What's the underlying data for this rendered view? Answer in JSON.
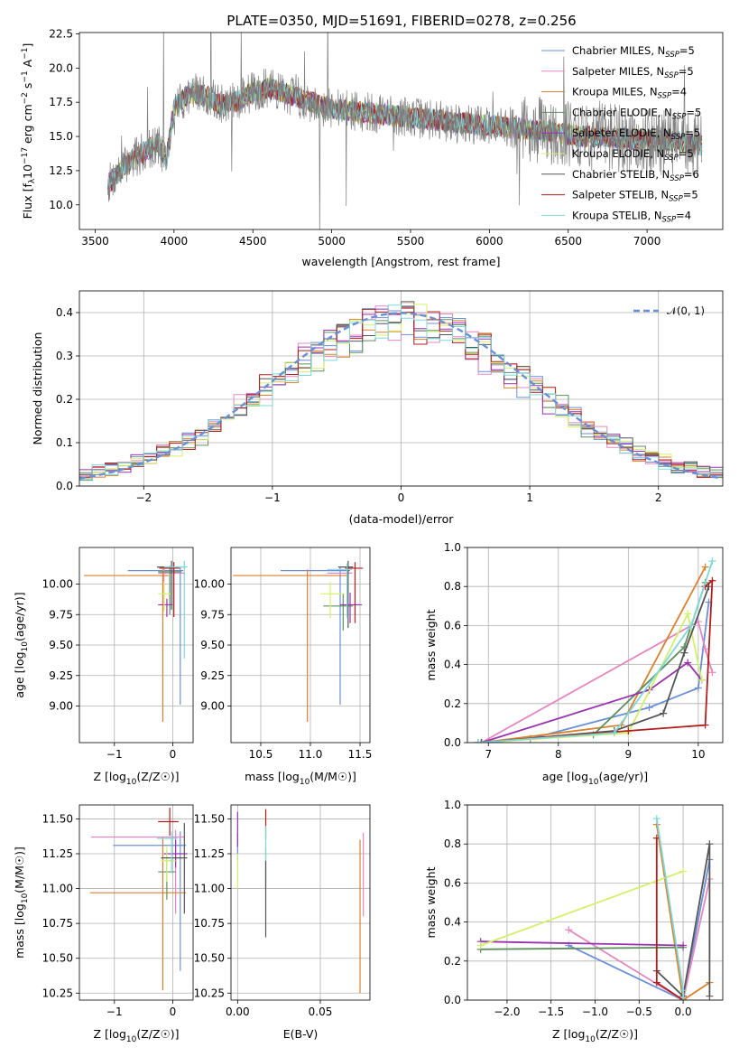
{
  "figure_title": "PLATE=0350, MJD=51691, FIBERID=0278, z=0.256",
  "model_colors": [
    "#6b8fd6",
    "#e388c2",
    "#d8822f",
    "#5f8f5f",
    "#9a32b0",
    "#d4ef6c",
    "#555555",
    "#b01e1e",
    "#7fd8d8"
  ],
  "chart_data": [
    {
      "id": "spectrum",
      "type": "line",
      "title": "PLATE=0350, MJD=51691, FIBERID=0278, z=0.256",
      "xlabel": "wavelength [Angstrom, rest frame]",
      "ylabel": "Flux [f_λ 10^-17 erg cm^-2 s^-1 A^-1]",
      "xlim": [
        3400,
        7480
      ],
      "ylim": [
        8.2,
        22.6
      ],
      "xticks": [
        3500,
        4000,
        4500,
        5000,
        5500,
        6000,
        6500,
        7000
      ],
      "yticks": [
        10.0,
        12.5,
        15.0,
        17.5,
        20.0,
        22.5
      ],
      "grid": false,
      "legend_position": "top-right",
      "data_color": "#808080",
      "continuum": {
        "x": [
          3580,
          3700,
          3800,
          3900,
          3950,
          4000,
          4100,
          4200,
          4300,
          4400,
          4500,
          4600,
          4700,
          4800,
          4900,
          5000,
          5200,
          5400,
          5600,
          5800,
          6000,
          6200,
          6400,
          6600,
          6800,
          7000,
          7200,
          7350
        ],
        "y": [
          11.5,
          13.0,
          13.8,
          14.5,
          13.2,
          17.0,
          18.2,
          18.0,
          17.3,
          17.6,
          18.3,
          18.5,
          18.2,
          17.8,
          17.4,
          17.0,
          16.8,
          16.5,
          16.3,
          16.0,
          15.8,
          15.6,
          15.3,
          15.0,
          14.9,
          14.7,
          14.6,
          14.3
        ]
      },
      "series": [
        {
          "name": "Chabrier MILES, N_SSP=5",
          "label_main": "Chabrier MILES, N",
          "label_sub": "SSP",
          "label_tail": "=5"
        },
        {
          "name": "Salpeter MILES, N_SSP=5",
          "label_main": "Salpeter MILES, N",
          "label_sub": "SSP",
          "label_tail": "=5"
        },
        {
          "name": "Kroupa MILES, N_SSP=4",
          "label_main": "Kroupa MILES, N",
          "label_sub": "SSP",
          "label_tail": "=4"
        },
        {
          "name": "Chabrier ELODIE, N_SSP=5",
          "label_main": "Chabrier ELODIE, N",
          "label_sub": "SSP",
          "label_tail": "=5"
        },
        {
          "name": "Salpeter ELODIE, N_SSP=5",
          "label_main": "Salpeter ELODIE, N",
          "label_sub": "SSP",
          "label_tail": "=5"
        },
        {
          "name": "Kroupa ELODIE, N_SSP=5",
          "label_main": "Kroupa ELODIE, N",
          "label_sub": "SSP",
          "label_tail": "=5"
        },
        {
          "name": "Chabrier STELIB, N_SSP=6",
          "label_main": "Chabrier STELIB, N",
          "label_sub": "SSP",
          "label_tail": "=6"
        },
        {
          "name": "Salpeter STELIB, N_SSP=5",
          "label_main": "Salpeter STELIB, N",
          "label_sub": "SSP",
          "label_tail": "=5"
        },
        {
          "name": "Kroupa STELIB, N_SSP=4",
          "label_main": "Kroupa STELIB, N",
          "label_sub": "SSP",
          "label_tail": "=4"
        }
      ]
    },
    {
      "id": "residuals",
      "type": "line",
      "xlabel": "(data-model)/error",
      "ylabel": "Normed distribution",
      "xlim": [
        -2.5,
        2.5
      ],
      "ylim": [
        0.0,
        0.45
      ],
      "xticks": [
        -2,
        -1,
        0,
        1,
        2
      ],
      "yticks": [
        0.0,
        0.1,
        0.2,
        0.3,
        0.4
      ],
      "grid": true,
      "bin_width": 0.1,
      "reference_curve": {
        "name": "N(0,1)",
        "label": "𝒩(0, 1)",
        "mean": 0,
        "sigma": 1,
        "color": "#6b8fd6",
        "style": "dashed"
      },
      "legend_position": "top-right"
    },
    {
      "id": "age-vs-Z",
      "type": "scatter",
      "xlabel_main": "Z [log",
      "xlabel_sub": "10",
      "xlabel_tail": "(Z/Z☉)]",
      "ylabel_main": "age  [log",
      "ylabel_sub": "10",
      "ylabel_tail": "(age/yr)]",
      "xlim": [
        -1.6,
        0.35
      ],
      "ylim": [
        8.7,
        10.3
      ],
      "xticks": [
        -1,
        0
      ],
      "yticks": [
        9.0,
        9.25,
        9.5,
        9.75,
        10.0
      ],
      "grid": true,
      "points": [
        {
          "x": 0.13,
          "y": 10.11,
          "xerr_lo": 0.9,
          "xerr_hi": 0.05,
          "yerr_lo": 1.1,
          "yerr_hi": 0.03
        },
        {
          "x": -0.15,
          "y": 10.09,
          "xerr_lo": 0.1,
          "xerr_hi": 0.35,
          "yerr_lo": 0.3,
          "yerr_hi": 0.05
        },
        {
          "x": -0.17,
          "y": 10.07,
          "xerr_lo": 1.35,
          "xerr_hi": 0.1,
          "yerr_lo": 1.2,
          "yerr_hi": 0.05
        },
        {
          "x": -0.05,
          "y": 10.1,
          "xerr_lo": 0.2,
          "xerr_hi": 0.2,
          "yerr_lo": 0.35,
          "yerr_hi": 0.05
        },
        {
          "x": -0.1,
          "y": 9.83,
          "xerr_lo": 0.15,
          "xerr_hi": 0.1,
          "yerr_lo": 0.1,
          "yerr_hi": 0.05
        },
        {
          "x": -0.15,
          "y": 9.92,
          "xerr_lo": 0.1,
          "xerr_hi": 0.15,
          "yerr_lo": 0.15,
          "yerr_hi": 0.1
        },
        {
          "x": -0.02,
          "y": 10.14,
          "xerr_lo": 0.25,
          "xerr_hi": 0.1,
          "yerr_lo": 0.35,
          "yerr_hi": 0.05
        },
        {
          "x": 0.02,
          "y": 10.13,
          "xerr_lo": 0.25,
          "xerr_hi": 0.1,
          "yerr_lo": 0.4,
          "yerr_hi": 0.05
        },
        {
          "x": 0.2,
          "y": 10.14,
          "xerr_lo": 0.35,
          "xerr_hi": 0.05,
          "yerr_lo": 0.75,
          "yerr_hi": 0.05
        }
      ]
    },
    {
      "id": "age-vs-mass",
      "type": "scatter",
      "xlabel_main": "mass [log",
      "xlabel_sub": "10",
      "xlabel_tail": "(M/M☉)]",
      "ylabel": "",
      "xlim": [
        10.2,
        11.6
      ],
      "ylim": [
        8.7,
        10.3
      ],
      "xticks": [
        10.5,
        11.0,
        11.5
      ],
      "yticks": [
        9.0,
        9.25,
        9.5,
        9.75,
        10.0
      ],
      "grid": true,
      "points": [
        {
          "x": 11.3,
          "y": 10.11,
          "xerr_lo": 0.6,
          "xerr_hi": 0.1,
          "yerr_lo": 1.1,
          "yerr_hi": 0.03
        },
        {
          "x": 11.37,
          "y": 10.09,
          "xerr_lo": 0.2,
          "xerr_hi": 0.05,
          "yerr_lo": 0.35,
          "yerr_hi": 0.05
        },
        {
          "x": 10.97,
          "y": 10.07,
          "xerr_lo": 0.75,
          "xerr_hi": 0.4,
          "yerr_lo": 1.2,
          "yerr_hi": 0.05
        },
        {
          "x": 11.33,
          "y": 9.82,
          "xerr_lo": 0.2,
          "xerr_hi": 0.1,
          "yerr_lo": 0.2,
          "yerr_hi": 0.1
        },
        {
          "x": 11.4,
          "y": 9.83,
          "xerr_lo": 0.1,
          "xerr_hi": 0.12,
          "yerr_lo": 0.15,
          "yerr_hi": 0.1
        },
        {
          "x": 11.2,
          "y": 9.92,
          "xerr_lo": 0.1,
          "xerr_hi": 0.15,
          "yerr_lo": 0.2,
          "yerr_hi": 0.1
        },
        {
          "x": 11.38,
          "y": 10.14,
          "xerr_lo": 0.1,
          "xerr_hi": 0.05,
          "yerr_lo": 0.5,
          "yerr_hi": 0.05
        },
        {
          "x": 11.45,
          "y": 10.13,
          "xerr_lo": 0.1,
          "xerr_hi": 0.08,
          "yerr_lo": 0.45,
          "yerr_hi": 0.05
        },
        {
          "x": 11.37,
          "y": 10.12,
          "xerr_lo": 0.2,
          "xerr_hi": 0.05,
          "yerr_lo": 0.4,
          "yerr_hi": 0.05
        }
      ]
    },
    {
      "id": "weight-vs-age",
      "type": "line",
      "xlabel_main": "age  [log",
      "xlabel_sub": "10",
      "xlabel_tail": "(age/yr)]",
      "ylabel": "mass weight",
      "xlim": [
        6.7,
        10.35
      ],
      "ylim": [
        0.0,
        1.0
      ],
      "xticks": [
        7,
        8,
        9,
        10
      ],
      "yticks": [
        0.0,
        0.2,
        0.4,
        0.6,
        0.8,
        1.0
      ],
      "grid": true,
      "series": [
        {
          "x": [
            6.9,
            7.6,
            9.3,
            10.0,
            10.15
          ],
          "y": [
            0.0,
            0.02,
            0.18,
            0.28,
            0.72
          ]
        },
        {
          "x": [
            6.9,
            10.0,
            10.1,
            10.2
          ],
          "y": [
            0.0,
            0.62,
            0.48,
            0.36
          ]
        },
        {
          "x": [
            6.9,
            8.9,
            10.1
          ],
          "y": [
            0.0,
            0.09,
            0.9
          ]
        },
        {
          "x": [
            6.85,
            8.5,
            9.8,
            10.1
          ],
          "y": [
            0.0,
            0.04,
            0.49,
            0.82
          ]
        },
        {
          "x": [
            6.9,
            9.3,
            9.85,
            10.05
          ],
          "y": [
            0.0,
            0.27,
            0.41,
            0.32
          ]
        },
        {
          "x": [
            6.9,
            9.0,
            9.85,
            10.05
          ],
          "y": [
            0.0,
            0.05,
            0.66,
            0.32
          ]
        },
        {
          "x": [
            6.9,
            8.8,
            9.5,
            9.8,
            10.15
          ],
          "y": [
            0.0,
            0.06,
            0.15,
            0.46,
            0.8
          ]
        },
        {
          "x": [
            6.85,
            9.0,
            10.1,
            10.2,
            10.1
          ],
          "y": [
            0.0,
            0.06,
            0.09,
            0.83,
            0.8
          ]
        },
        {
          "x": [
            6.85,
            8.8,
            9.9,
            10.2
          ],
          "y": [
            0.0,
            0.05,
            0.6,
            0.93
          ]
        }
      ]
    },
    {
      "id": "mass-vs-Z",
      "type": "scatter",
      "xlabel_main": "Z [log",
      "xlabel_sub": "10",
      "xlabel_tail": "(Z/Z☉)]",
      "ylabel_main": "mass [log",
      "ylabel_sub": "10",
      "ylabel_tail": "(M/M☉)]",
      "xlim": [
        -1.6,
        0.35
      ],
      "ylim": [
        10.2,
        11.6
      ],
      "xticks": [
        -1,
        0
      ],
      "yticks": [
        10.25,
        10.5,
        10.75,
        11.0,
        11.25,
        11.5
      ],
      "grid": true,
      "points": [
        {
          "x": 0.13,
          "y": 11.31,
          "xerr_lo": 1.15,
          "xerr_hi": 0.1,
          "yerr_lo": 0.9,
          "yerr_hi": 0.1
        },
        {
          "x": 0.05,
          "y": 11.37,
          "xerr_lo": 1.45,
          "xerr_hi": 0.15,
          "yerr_lo": 0.55,
          "yerr_hi": 0.05
        },
        {
          "x": -0.17,
          "y": 10.97,
          "xerr_lo": 1.25,
          "xerr_hi": 0.4,
          "yerr_lo": 0.7,
          "yerr_hi": 0.4
        },
        {
          "x": -0.1,
          "y": 11.12,
          "xerr_lo": 0.15,
          "xerr_hi": 0.15,
          "yerr_lo": 0.2,
          "yerr_hi": 0.15
        },
        {
          "x": 0.05,
          "y": 11.25,
          "xerr_lo": 0.2,
          "xerr_hi": 0.2,
          "yerr_lo": 0.1,
          "yerr_hi": 0.1
        },
        {
          "x": -0.1,
          "y": 11.2,
          "xerr_lo": 0.1,
          "xerr_hi": 0.15,
          "yerr_lo": 0.15,
          "yerr_hi": 0.1
        },
        {
          "x": 0.2,
          "y": 11.22,
          "xerr_lo": 0.4,
          "xerr_hi": 0.05,
          "yerr_lo": 0.4,
          "yerr_hi": 0.25
        },
        {
          "x": -0.05,
          "y": 11.48,
          "xerr_lo": 0.2,
          "xerr_hi": 0.15,
          "yerr_lo": 0.1,
          "yerr_hi": 0.1
        },
        {
          "x": -0.02,
          "y": 11.36,
          "xerr_lo": 0.25,
          "xerr_hi": 0.1,
          "yerr_lo": 0.25,
          "yerr_hi": 0.05
        }
      ]
    },
    {
      "id": "mass-vs-EBV",
      "type": "scatter",
      "xlabel": "E(B-V)",
      "ylabel": "",
      "xlim": [
        -0.004,
        0.08
      ],
      "ylim": [
        10.2,
        11.6
      ],
      "xticks": [
        0.0,
        0.05
      ],
      "yticks": [
        10.25,
        10.5,
        10.75,
        11.0,
        11.25,
        11.5
      ],
      "grid": true,
      "points": [
        {
          "x": 0.0,
          "y": 11.3,
          "xerr_lo": 0,
          "xerr_hi": 0,
          "yerr_lo": 0.1,
          "yerr_hi": 0.1
        },
        {
          "x": 0.076,
          "y": 11.2,
          "xerr_lo": 0,
          "xerr_hi": 0,
          "yerr_lo": 0.4,
          "yerr_hi": 0.2
        },
        {
          "x": 0.074,
          "y": 10.9,
          "xerr_lo": 0,
          "xerr_hi": 0,
          "yerr_lo": 0.65,
          "yerr_hi": 0.45
        },
        {
          "x": 0.017,
          "y": 11.2,
          "xerr_lo": 0,
          "xerr_hi": 0,
          "yerr_lo": 0.2,
          "yerr_hi": 0.1
        },
        {
          "x": 0.0,
          "y": 11.4,
          "xerr_lo": 0,
          "xerr_hi": 0,
          "yerr_lo": 0.1,
          "yerr_hi": 0.15
        },
        {
          "x": 0.0,
          "y": 11.1,
          "xerr_lo": 0,
          "xerr_hi": 0,
          "yerr_lo": 0.1,
          "yerr_hi": 0.15
        },
        {
          "x": 0.017,
          "y": 11.0,
          "xerr_lo": 0,
          "xerr_hi": 0,
          "yerr_lo": 0.35,
          "yerr_hi": 0.2
        },
        {
          "x": 0.017,
          "y": 11.45,
          "xerr_lo": 0,
          "xerr_hi": 0,
          "yerr_lo": 0.1,
          "yerr_hi": 0.12
        },
        {
          "x": 0.017,
          "y": 11.35,
          "xerr_lo": 0,
          "xerr_hi": 0,
          "yerr_lo": 0.15,
          "yerr_hi": 0.1
        }
      ]
    },
    {
      "id": "weight-vs-Z",
      "type": "line",
      "xlabel_main": "Z [log",
      "xlabel_sub": "10",
      "xlabel_tail": "(Z/Z☉)]",
      "ylabel": "mass weight",
      "xlim": [
        -2.45,
        0.45
      ],
      "ylim": [
        0.0,
        1.0
      ],
      "xticks": [
        -2.0,
        -1.5,
        -1.0,
        -0.5,
        0.0
      ],
      "yticks": [
        0.0,
        0.2,
        0.4,
        0.6,
        0.8,
        1.0
      ],
      "grid": true,
      "series": [
        {
          "x": [
            -1.3,
            0.0,
            0.3
          ],
          "y": [
            0.28,
            0.0,
            0.72
          ]
        },
        {
          "x": [
            -1.3,
            0.0,
            0.3
          ],
          "y": [
            0.36,
            0.0,
            0.62
          ]
        },
        {
          "x": [
            -0.3,
            0.0,
            0.3
          ],
          "y": [
            0.9,
            0.0,
            0.09
          ]
        },
        {
          "x": [
            -2.3,
            0.0
          ],
          "y": [
            0.26,
            0.27
          ]
        },
        {
          "x": [
            -2.3,
            0.0
          ],
          "y": [
            0.3,
            0.28
          ]
        },
        {
          "x": [
            -2.3,
            0.0
          ],
          "y": [
            0.28,
            0.66
          ]
        },
        {
          "x": [
            -0.3,
            0.0,
            0.3,
            0.3
          ],
          "y": [
            0.15,
            0.02,
            0.8,
            0.02
          ]
        },
        {
          "x": [
            -0.3,
            -0.3,
            0.0
          ],
          "y": [
            0.83,
            0.09,
            0.0
          ]
        },
        {
          "x": [
            -0.3,
            0.0,
            0.0
          ],
          "y": [
            0.93,
            0.05,
            0.0
          ]
        }
      ]
    }
  ]
}
